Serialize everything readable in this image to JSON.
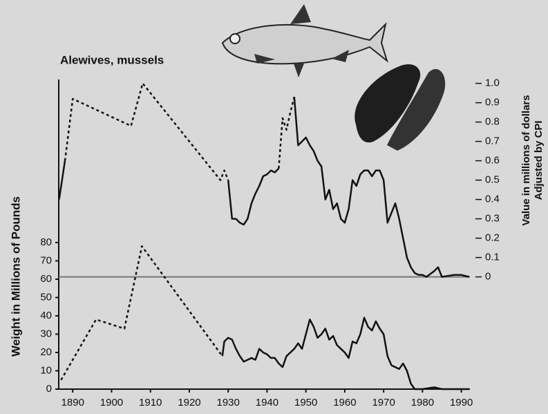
{
  "chart_data": {
    "type": "line",
    "title": "Alewives, mussels",
    "ylabel": "Weight in Millions of Pounds",
    "y2label": [
      "Value in millions of dollars",
      "Adjusted by CPI"
    ],
    "xlim": [
      1886.4,
      1992.2
    ],
    "xticks": [
      1890,
      1900,
      1910,
      1920,
      1930,
      1940,
      1950,
      1960,
      1970,
      1980,
      1990
    ],
    "ylim": [
      0,
      169
    ],
    "yticks": [
      0,
      10,
      20,
      30,
      40,
      50,
      60,
      70,
      80
    ],
    "y2lim": [
      -0.58,
      1.02
    ],
    "y2ticks": [
      0,
      0.1,
      0.2,
      0.3,
      0.4,
      0.5,
      0.6,
      0.7,
      0.8,
      0.9,
      {
        "value": 1,
        "label": "1.0"
      }
    ],
    "baseline_y2": 0,
    "color": "#111111",
    "series": [
      {
        "axis": "y",
        "dashed": true,
        "x": [
          1887,
          1896,
          1903.3,
          1907.8,
          1928.5
        ],
        "values": [
          5,
          38,
          33,
          78,
          18
        ]
      },
      {
        "axis": "y",
        "dashed": false,
        "x": [
          1928.5,
          1929,
          1930,
          1931,
          1932,
          1933,
          1934,
          1935,
          1936,
          1937,
          1938,
          1939,
          1940,
          1941,
          1942,
          1943,
          1944,
          1945,
          1946,
          1947,
          1948,
          1949,
          1950,
          1951,
          1952,
          1953,
          1954,
          1955,
          1956,
          1957,
          1958,
          1959,
          1960,
          1961,
          1962,
          1963,
          1964,
          1965,
          1966,
          1967,
          1968,
          1969,
          1970,
          1971,
          1972,
          1973,
          1974,
          1975,
          1976,
          1977,
          1978,
          1980,
          1983,
          1985,
          1990,
          1992
        ],
        "values": [
          18,
          26,
          28,
          27,
          22,
          18,
          15,
          16,
          17,
          16,
          22,
          20,
          19,
          17,
          17,
          14,
          12,
          18,
          20,
          22,
          25,
          22,
          30,
          38,
          34,
          28,
          30,
          33,
          27,
          29,
          24,
          22,
          20,
          17,
          26,
          25,
          30,
          39,
          34,
          32,
          37,
          33,
          30,
          18,
          13,
          12,
          11,
          14,
          10,
          3,
          0,
          0,
          1,
          0,
          0,
          0
        ]
      },
      {
        "axis": "y2",
        "dashed": false,
        "x": [
          1886.5,
          1888
        ],
        "values": [
          0.4,
          0.6
        ]
      },
      {
        "axis": "y2",
        "dashed": true,
        "x": [
          1888,
          1890,
          1905,
          1908,
          1928,
          1929,
          1930
        ],
        "values": [
          0.6,
          0.92,
          0.78,
          1.0,
          0.5,
          0.55,
          0.5
        ]
      },
      {
        "axis": "y2",
        "dashed": false,
        "x": [
          1930,
          1931,
          1932,
          1933,
          1934,
          1935,
          1936,
          1937,
          1938,
          1939,
          1940,
          1941,
          1942,
          1943
        ],
        "values": [
          0.5,
          0.3,
          0.3,
          0.28,
          0.27,
          0.3,
          0.38,
          0.43,
          0.47,
          0.52,
          0.53,
          0.55,
          0.54,
          0.56
        ]
      },
      {
        "axis": "y2",
        "dashed": true,
        "x": [
          1943,
          1944,
          1945,
          1946,
          1947
        ],
        "values": [
          0.56,
          0.82,
          0.76,
          0.85,
          0.93
        ]
      },
      {
        "axis": "y2",
        "dashed": false,
        "x": [
          1947,
          1948,
          1949,
          1950,
          1951,
          1952,
          1953,
          1954,
          1955,
          1956,
          1957,
          1958,
          1959,
          1960,
          1961,
          1962,
          1963,
          1964,
          1965,
          1966,
          1967,
          1968,
          1969,
          1970,
          1971,
          1972,
          1973,
          1974,
          1975,
          1976,
          1977,
          1978,
          1979,
          1980,
          1981,
          1983,
          1984,
          1985,
          1988,
          1990,
          1992
        ],
        "values": [
          0.93,
          0.68,
          0.7,
          0.72,
          0.68,
          0.65,
          0.6,
          0.57,
          0.4,
          0.45,
          0.35,
          0.38,
          0.3,
          0.28,
          0.35,
          0.5,
          0.47,
          0.53,
          0.55,
          0.55,
          0.52,
          0.55,
          0.55,
          0.5,
          0.28,
          0.33,
          0.38,
          0.3,
          0.2,
          0.1,
          0.05,
          0.02,
          0.01,
          0.01,
          0,
          0.03,
          0.05,
          0,
          0.01,
          0.01,
          0
        ]
      }
    ]
  }
}
